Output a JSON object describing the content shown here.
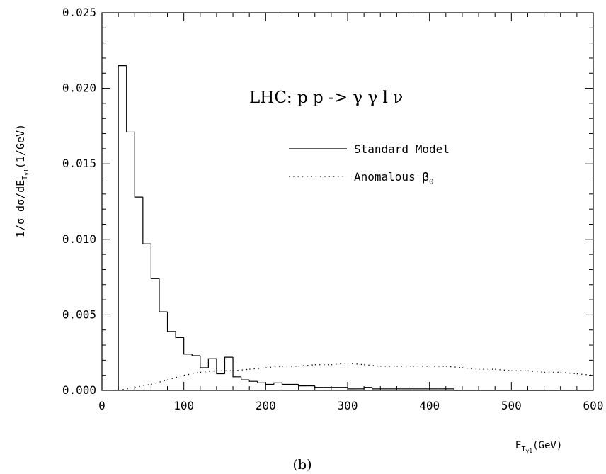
{
  "chart_data": {
    "type": "line",
    "title": "LHC: p p -> γ γ l ν",
    "caption": "(b)",
    "xlabel": "E",
    "xlabel_sub": "T",
    "xlabel_subsub": "γ1",
    "xlabel_unit": "(GeV)",
    "ylabel": "1/σ dσ/dE",
    "ylabel_sub": "T",
    "ylabel_subsub": "γ1",
    "ylabel_unit": "(1/GeV)",
    "xlim": [
      0,
      600
    ],
    "ylim": [
      0,
      0.025
    ],
    "x_ticks": [
      "0",
      "100",
      "200",
      "300",
      "400",
      "500",
      "600"
    ],
    "y_ticks": [
      "0.000",
      "0.005",
      "0.010",
      "0.015",
      "0.020",
      "0.025"
    ],
    "grid": false,
    "legend_position": "top-right",
    "series": [
      {
        "name": "Standard Model",
        "style": "solid-step",
        "bin_width": 10,
        "x": [
          20,
          30,
          40,
          50,
          60,
          70,
          80,
          90,
          100,
          110,
          120,
          130,
          140,
          150,
          160,
          170,
          180,
          190,
          200,
          210,
          220,
          230,
          240,
          250,
          260,
          270,
          280,
          290,
          300,
          310,
          320,
          330,
          340,
          350,
          360,
          370,
          380,
          390,
          400,
          410,
          420,
          430,
          440,
          450,
          460,
          470,
          480,
          490,
          500,
          510,
          520,
          530,
          540,
          550,
          560,
          570,
          580,
          590
        ],
        "values": [
          0.0215,
          0.0171,
          0.0128,
          0.0097,
          0.0074,
          0.0052,
          0.0039,
          0.0035,
          0.0024,
          0.0023,
          0.0015,
          0.0021,
          0.0011,
          0.0022,
          0.0009,
          0.0007,
          0.0006,
          0.0005,
          0.0004,
          0.0005,
          0.0004,
          0.0004,
          0.0003,
          0.0003,
          0.0002,
          0.0002,
          0.0002,
          0.0002,
          0.0001,
          0.0001,
          0.0002,
          0.0001,
          0.0001,
          0.0001,
          0.0001,
          0.0001,
          0.0001,
          0.0001,
          0.0001,
          0.0001,
          0.0001,
          0.0,
          0.0,
          0.0,
          0.0,
          0.0,
          0.0,
          0.0,
          0.0,
          0.0,
          0.0,
          0.0,
          0.0,
          0.0,
          0.0,
          0.0,
          0.0,
          0.0
        ]
      },
      {
        "name": "Anomalous β",
        "name_sub": "0",
        "style": "dotted",
        "x": [
          20,
          40,
          60,
          80,
          100,
          120,
          140,
          160,
          180,
          200,
          220,
          240,
          260,
          280,
          300,
          320,
          340,
          360,
          380,
          400,
          420,
          440,
          460,
          480,
          500,
          520,
          540,
          560,
          580,
          600
        ],
        "values": [
          0.0,
          0.0002,
          0.0004,
          0.0007,
          0.001,
          0.0012,
          0.0013,
          0.0013,
          0.0014,
          0.0015,
          0.0016,
          0.0016,
          0.0017,
          0.0017,
          0.0018,
          0.0017,
          0.0016,
          0.0016,
          0.0016,
          0.0016,
          0.0016,
          0.0015,
          0.0014,
          0.0014,
          0.0013,
          0.0013,
          0.0012,
          0.0012,
          0.0011,
          0.001
        ]
      }
    ]
  }
}
